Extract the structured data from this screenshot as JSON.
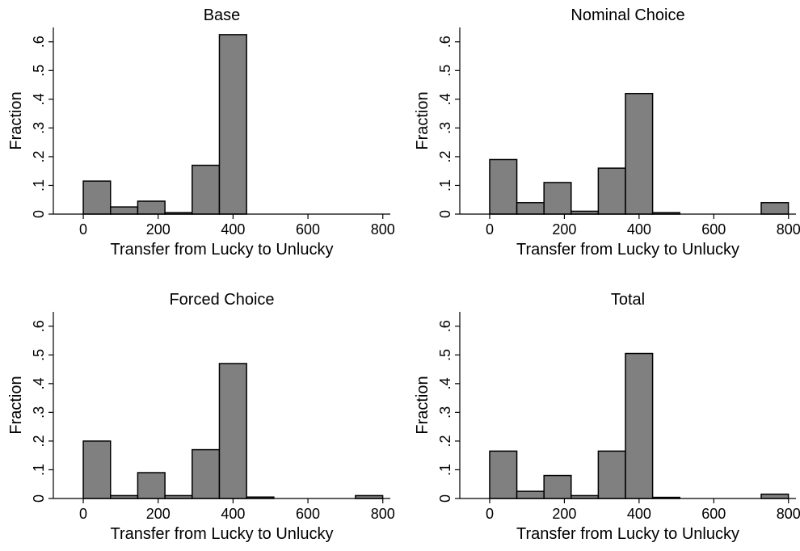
{
  "chart_data": [
    {
      "type": "bar",
      "title": "Base",
      "xlabel": "Transfer from Lucky to Unlucky",
      "ylabel": "Fraction",
      "bin_width": 72.7,
      "x": [
        0,
        72.7,
        145.4,
        218.1,
        290.8,
        363.5
      ],
      "values": [
        0.115,
        0.025,
        0.045,
        0.005,
        0.17,
        0.625
      ],
      "xlim": [
        -80,
        820
      ],
      "ylim": [
        0,
        0.65
      ],
      "xticks": [
        0,
        200,
        400,
        600,
        800
      ],
      "yticks": [
        0,
        0.1,
        0.2,
        0.3,
        0.4,
        0.5,
        0.6
      ],
      "xtick_labels": [
        "0",
        "200",
        "400",
        "600",
        "800"
      ],
      "ytick_labels": [
        "0",
        ".1",
        ".2",
        ".3",
        ".4",
        ".5",
        ".6"
      ],
      "grid": false
    },
    {
      "type": "bar",
      "title": "Nominal Choice",
      "xlabel": "Transfer from Lucky to Unlucky",
      "ylabel": "Fraction",
      "bin_width": 72.7,
      "x": [
        0,
        72.7,
        145.4,
        218.1,
        290.8,
        363.5,
        436.2,
        727.0
      ],
      "values": [
        0.19,
        0.04,
        0.11,
        0.01,
        0.16,
        0.42,
        0.005,
        0.04
      ],
      "xlim": [
        -80,
        820
      ],
      "ylim": [
        0,
        0.65
      ],
      "xticks": [
        0,
        200,
        400,
        600,
        800
      ],
      "yticks": [
        0,
        0.1,
        0.2,
        0.3,
        0.4,
        0.5,
        0.6
      ],
      "xtick_labels": [
        "0",
        "200",
        "400",
        "600",
        "800"
      ],
      "ytick_labels": [
        "0",
        ".1",
        ".2",
        ".3",
        ".4",
        ".5",
        ".6"
      ],
      "grid": false
    },
    {
      "type": "bar",
      "title": "Forced Choice",
      "xlabel": "Transfer from Lucky to Unlucky",
      "ylabel": "Fraction",
      "bin_width": 72.7,
      "x": [
        0,
        72.7,
        145.4,
        218.1,
        290.8,
        363.5,
        436.2,
        727.0
      ],
      "values": [
        0.2,
        0.01,
        0.09,
        0.01,
        0.17,
        0.47,
        0.005,
        0.01
      ],
      "xlim": [
        -80,
        820
      ],
      "ylim": [
        0,
        0.65
      ],
      "xticks": [
        0,
        200,
        400,
        600,
        800
      ],
      "yticks": [
        0,
        0.1,
        0.2,
        0.3,
        0.4,
        0.5,
        0.6
      ],
      "xtick_labels": [
        "0",
        "200",
        "400",
        "600",
        "800"
      ],
      "ytick_labels": [
        "0",
        ".1",
        ".2",
        ".3",
        ".4",
        ".5",
        ".6"
      ],
      "grid": false
    },
    {
      "type": "bar",
      "title": "Total",
      "xlabel": "Transfer from Lucky to Unlucky",
      "ylabel": "Fraction",
      "bin_width": 72.7,
      "x": [
        0,
        72.7,
        145.4,
        218.1,
        290.8,
        363.5,
        436.2,
        727.0
      ],
      "values": [
        0.165,
        0.025,
        0.08,
        0.01,
        0.165,
        0.505,
        0.004,
        0.015
      ],
      "xlim": [
        -80,
        820
      ],
      "ylim": [
        0,
        0.65
      ],
      "xticks": [
        0,
        200,
        400,
        600,
        800
      ],
      "yticks": [
        0,
        0.1,
        0.2,
        0.3,
        0.4,
        0.5,
        0.6
      ],
      "xtick_labels": [
        "0",
        "200",
        "400",
        "600",
        "800"
      ],
      "ytick_labels": [
        "0",
        ".1",
        ".2",
        ".3",
        ".4",
        ".5",
        ".6"
      ],
      "grid": false
    }
  ]
}
